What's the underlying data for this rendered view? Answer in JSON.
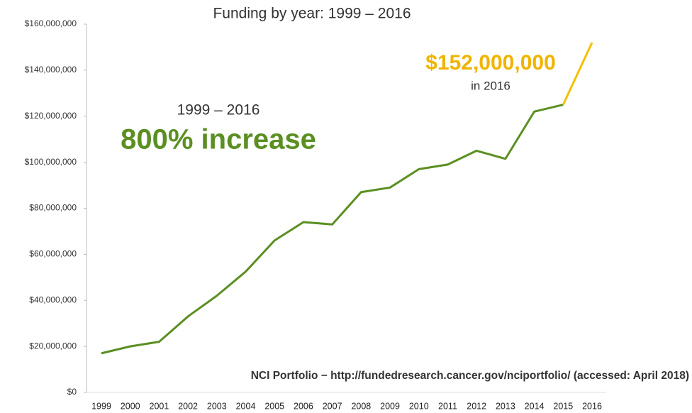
{
  "chart_data": {
    "type": "line",
    "title": "Funding by year: 1999 – 2016",
    "categories": [
      "1999",
      "2000",
      "2001",
      "2002",
      "2003",
      "2004",
      "2005",
      "2006",
      "2007",
      "2008",
      "2009",
      "2010",
      "2011",
      "2012",
      "2013",
      "2014",
      "2015",
      "2016"
    ],
    "series": [
      {
        "color": "#5b8f22",
        "values": [
          17000000,
          20000000,
          22000000,
          33000000,
          42000000,
          52500000,
          66000000,
          74000000,
          73000000,
          87000000,
          89000000,
          97000000,
          99000000,
          105000000,
          101500000,
          122000000,
          125000000,
          null
        ]
      },
      {
        "color": "#f5c000",
        "values": [
          null,
          null,
          null,
          null,
          null,
          null,
          null,
          null,
          null,
          null,
          null,
          null,
          null,
          null,
          null,
          null,
          125000000,
          152000000
        ]
      }
    ],
    "ylim": [
      0,
      160000000
    ],
    "yticks": [
      {
        "value": 0,
        "label": "$0"
      },
      {
        "value": 20000000,
        "label": "$20,000,000"
      },
      {
        "value": 40000000,
        "label": "$40,000,000"
      },
      {
        "value": 60000000,
        "label": "$60,000,000"
      },
      {
        "value": 80000000,
        "label": "$80,000,000"
      },
      {
        "value": 100000000,
        "label": "$100,000,000"
      },
      {
        "value": 120000000,
        "label": "$120,000,000"
      },
      {
        "value": 140000000,
        "label": "$140,000,000"
      },
      {
        "value": 160000000,
        "label": "$160,000,000"
      }
    ],
    "grid": false,
    "annotations": {
      "highlight_value": "$152,000,000",
      "highlight_note": "in 2016",
      "range": "1999 – 2016",
      "increase": "800% increase",
      "source": "NCI Portfolio − http://fundedresearch.cancer.gov/nciportfolio/ (accessed: April 2018)"
    }
  }
}
